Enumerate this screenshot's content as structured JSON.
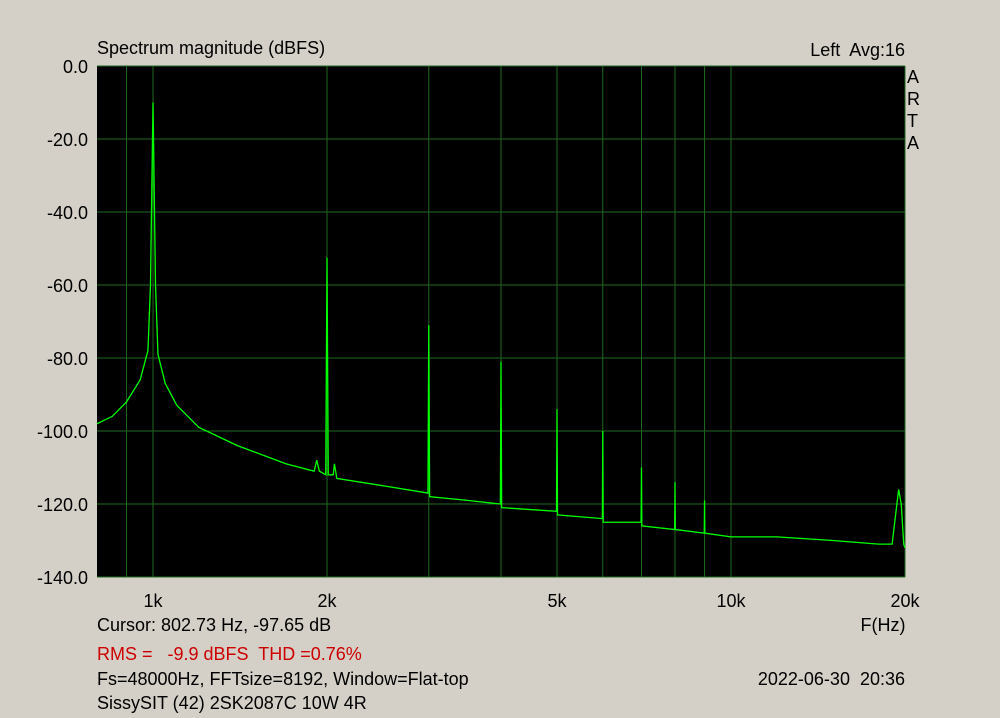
{
  "chart_data": {
    "type": "line",
    "title": "Spectrum magnitude (dBFS)",
    "channel_info": "Left  Avg:16",
    "side_label": "ARTA",
    "x_label": "F(Hz)",
    "cursor": "Cursor: 802.73 Hz, -97.65 dB",
    "rms_thd": "RMS =   -9.9 dBFS  THD =0.76%",
    "settings_info": "Fs=48000Hz, FFTsize=8192, Window=Flat-top",
    "timestamp": "2022-06-30  20:36",
    "device": "SissySIT (42) 2SK2087C 10W 4R",
    "xscale": "log",
    "xlim": [
      800,
      20000
    ],
    "xticks": [
      {
        "value": 1000,
        "label": "1k"
      },
      {
        "value": 2000,
        "label": "2k"
      },
      {
        "value": 5000,
        "label": "5k"
      },
      {
        "value": 10000,
        "label": "10k"
      },
      {
        "value": 20000,
        "label": "20k"
      }
    ],
    "xgrid_minor": [
      900,
      3000,
      4000,
      6000,
      7000,
      8000,
      9000
    ],
    "ylim": [
      -140,
      0
    ],
    "yticks": [
      {
        "value": 0,
        "label": "0.0"
      },
      {
        "value": -20,
        "label": "-20.0"
      },
      {
        "value": -40,
        "label": "-40.0"
      },
      {
        "value": -60,
        "label": "-60.0"
      },
      {
        "value": -80,
        "label": "-80.0"
      },
      {
        "value": -100,
        "label": "-100.0"
      },
      {
        "value": -120,
        "label": "-120.0"
      },
      {
        "value": -140,
        "label": "-140.0"
      }
    ],
    "grid": true,
    "series": [
      {
        "color": "#00ff00",
        "x": [
          800,
          850,
          900,
          950,
          980,
          990,
          1000,
          1010,
          1020,
          1050,
          1100,
          1200,
          1400,
          1700,
          1900,
          1920,
          1940,
          1990,
          2000,
          2010,
          2050,
          2060,
          2080,
          2500,
          2990,
          3000,
          3010,
          3500,
          3990,
          4000,
          4010,
          4990,
          5000,
          5010,
          5990,
          6000,
          6010,
          6990,
          7000,
          7010,
          7990,
          8000,
          8010,
          8990,
          9000,
          9010,
          10000,
          12000,
          15000,
          18000,
          19000,
          19500,
          19700,
          19900,
          20000
        ],
        "values": [
          -98,
          -96,
          -92,
          -86,
          -78,
          -60,
          -10,
          -60,
          -79,
          -87,
          -93,
          -99,
          -104,
          -109,
          -111,
          -108,
          -111,
          -112,
          -52.5,
          -112,
          -112,
          -109,
          -113,
          -115,
          -117,
          -71,
          -118,
          -119,
          -120,
          -81,
          -121,
          -122,
          -94,
          -123,
          -124,
          -100,
          -125,
          -125,
          -110,
          -126,
          -127,
          -114,
          -127,
          -128,
          -119,
          -128,
          -129,
          -129,
          -130,
          -131,
          -131,
          -116,
          -120,
          -131,
          -132
        ]
      }
    ]
  }
}
